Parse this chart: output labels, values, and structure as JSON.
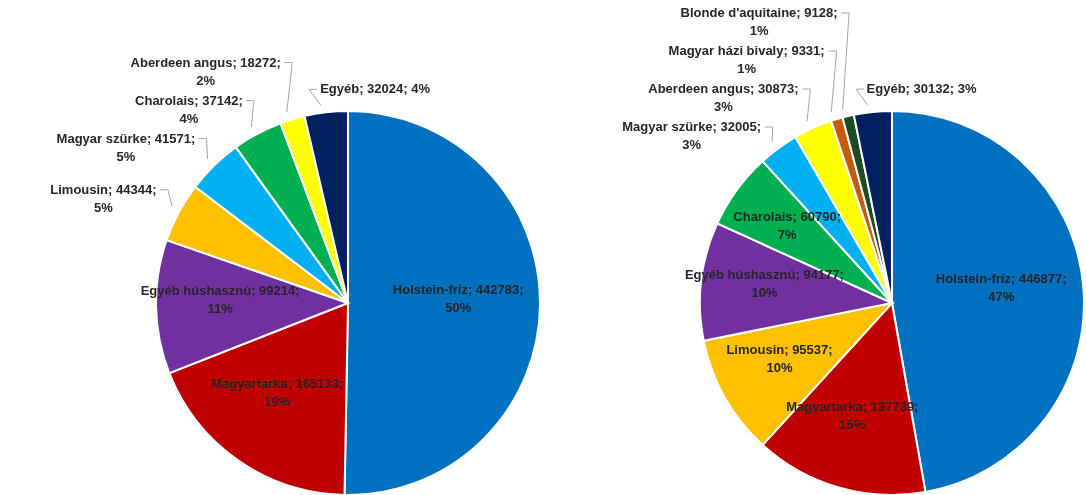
{
  "chart_data": [
    {
      "type": "pie",
      "categories": [
        "Holstein-fríz",
        "Magyartarka",
        "Egyéb húshasznú",
        "Limousin",
        "Magyar szürke",
        "Charolais",
        "Aberdeen angus",
        "Egyéb"
      ],
      "values": [
        442783,
        165133,
        99214,
        44344,
        41571,
        37142,
        18272,
        32024
      ],
      "value_labels": [
        "442783; 50%",
        "165133; 19%",
        "99214; 11%",
        "44344; 5%",
        "41571; 5%",
        "37142; 4%",
        "18272; 2%",
        "32024; 4%"
      ],
      "colors": [
        "#0070c0",
        "#c00000",
        "#7030a0",
        "#ffc000",
        "#00b0f0",
        "#00b050",
        "#ffff00",
        "#002060"
      ]
    },
    {
      "type": "pie",
      "categories": [
        "Holstein-fríz",
        "Magyartarka",
        "Limousin",
        "Egyéb húshasznú",
        "Charolais",
        "Magyar szürke",
        "Aberdeen angus",
        "Magyar házi bivaly",
        "Blonde d'aquitaine",
        "Egyéb"
      ],
      "values": [
        446877,
        137739,
        95537,
        94177,
        60790,
        32005,
        30873,
        9331,
        9128,
        30132
      ],
      "value_labels": [
        "446877; 47%",
        "137739; 15%",
        "95537; 10%",
        "94177; 10%",
        "60790; 7%",
        "32005; 3%",
        "30873; 3%",
        "9331; 1%",
        "9128; 1%",
        "30132; 3%"
      ],
      "colors": [
        "#0070c0",
        "#c00000",
        "#ffc000",
        "#7030a0",
        "#00b050",
        "#00b0f0",
        "#ffff00",
        "#c55a11",
        "#1e4a26",
        "#002060"
      ]
    }
  ]
}
